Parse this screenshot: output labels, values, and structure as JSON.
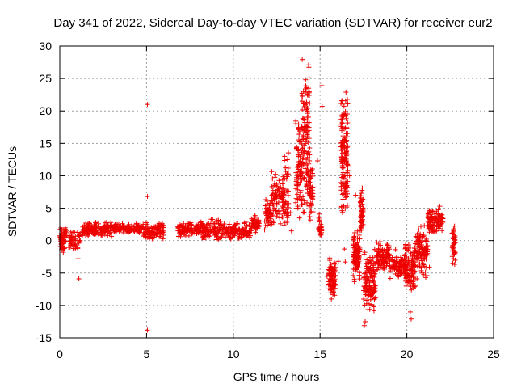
{
  "chart_data": {
    "type": "scatter",
    "title": "Day 341 of 2022, Sidereal Day-to-day VTEC variation (SDTVAR) for receiver eur2",
    "xlabel": "GPS time / hours",
    "ylabel": "SDTVAR / TECUs",
    "xlim": [
      0,
      25
    ],
    "ylim": [
      -15,
      30
    ],
    "xticks": [
      0,
      5,
      10,
      15,
      20,
      25
    ],
    "yticks": [
      -15,
      -10,
      -5,
      0,
      5,
      10,
      15,
      20,
      25,
      30
    ],
    "xtick_labels": [
      "0",
      "5",
      "10",
      "15",
      "20",
      "25"
    ],
    "ytick_labels": [
      "-15",
      "-10",
      "-5",
      "0",
      "5",
      "10",
      "15",
      "20",
      "25",
      "30"
    ],
    "grid": true,
    "marker": "+",
    "color": "#ee0000",
    "series": [
      {
        "name": "SDTVAR",
        "segments": [
          {
            "x0": 0.0,
            "x1": 0.4,
            "lo": -2.0,
            "hi": 2.5,
            "n": 60
          },
          {
            "x0": 0.5,
            "x1": 1.2,
            "lo": -1.5,
            "hi": 2.0,
            "n": 50
          },
          {
            "x0": 1.3,
            "x1": 3.0,
            "lo": 0.5,
            "hi": 3.0,
            "n": 150
          },
          {
            "x0": 3.0,
            "x1": 4.8,
            "lo": 1.0,
            "hi": 2.8,
            "n": 150
          },
          {
            "x0": 4.8,
            "x1": 6.0,
            "lo": 0.0,
            "hi": 2.8,
            "n": 110
          },
          {
            "x0": 6.8,
            "x1": 8.0,
            "lo": 0.5,
            "hi": 3.0,
            "n": 100
          },
          {
            "x0": 8.0,
            "x1": 9.5,
            "lo": 0.0,
            "hi": 3.5,
            "n": 130
          },
          {
            "x0": 9.5,
            "x1": 11.0,
            "lo": 0.0,
            "hi": 3.0,
            "n": 130
          },
          {
            "x0": 11.0,
            "x1": 11.5,
            "lo": 1.0,
            "hi": 4.0,
            "n": 50
          },
          {
            "x0": 11.8,
            "x1": 12.2,
            "lo": 1.0,
            "hi": 6.5,
            "n": 50
          },
          {
            "x0": 12.2,
            "x1": 12.9,
            "lo": 2.0,
            "hi": 11.0,
            "n": 90
          },
          {
            "x0": 12.9,
            "x1": 13.2,
            "lo": 1.0,
            "hi": 14.0,
            "n": 45
          },
          {
            "x0": 13.6,
            "x1": 13.95,
            "lo": 3.0,
            "hi": 19.0,
            "n": 80
          },
          {
            "x0": 13.95,
            "x1": 14.4,
            "lo": 2.0,
            "hi": 29.5,
            "n": 140
          },
          {
            "x0": 14.4,
            "x1": 14.6,
            "lo": 3.0,
            "hi": 12.0,
            "n": 40
          },
          {
            "x0": 14.9,
            "x1": 15.1,
            "lo": 0.0,
            "hi": 4.0,
            "n": 25
          },
          {
            "x0": 15.5,
            "x1": 15.9,
            "lo": -9.0,
            "hi": -2.0,
            "n": 90
          },
          {
            "x0": 16.2,
            "x1": 16.6,
            "lo": 2.0,
            "hi": 24.0,
            "n": 160
          },
          {
            "x0": 16.9,
            "x1": 17.3,
            "lo": -7.0,
            "hi": 2.0,
            "n": 100
          },
          {
            "x0": 17.3,
            "x1": 17.5,
            "lo": 1.0,
            "hi": 9.0,
            "n": 50
          },
          {
            "x0": 17.5,
            "x1": 18.2,
            "lo": -11.0,
            "hi": -1.0,
            "n": 130
          },
          {
            "x0": 18.2,
            "x1": 19.0,
            "lo": -5.0,
            "hi": 0.0,
            "n": 100
          },
          {
            "x0": 19.0,
            "x1": 19.9,
            "lo": -6.0,
            "hi": -2.0,
            "n": 100
          },
          {
            "x0": 19.9,
            "x1": 20.5,
            "lo": -8.5,
            "hi": 0.0,
            "n": 110
          },
          {
            "x0": 20.5,
            "x1": 21.2,
            "lo": -6.0,
            "hi": 2.5,
            "n": 110
          },
          {
            "x0": 21.2,
            "x1": 22.1,
            "lo": 1.0,
            "hi": 5.0,
            "n": 110
          },
          {
            "x0": 22.6,
            "x1": 22.8,
            "lo": -4.0,
            "hi": 3.5,
            "n": 40
          }
        ],
        "points": [
          [
            0.2,
            -1.8
          ],
          [
            1.05,
            -2.8
          ],
          [
            1.1,
            -5.9
          ],
          [
            5.05,
            21.0
          ],
          [
            5.05,
            6.8
          ],
          [
            5.05,
            -13.8
          ],
          [
            13.3,
            4.3
          ],
          [
            13.35,
            1.5
          ],
          [
            14.85,
            12.3
          ],
          [
            14.95,
            4.1
          ],
          [
            15.1,
            23.9
          ],
          [
            15.12,
            20.7
          ],
          [
            15.4,
            -5.5
          ],
          [
            15.65,
            -9.0
          ],
          [
            16.05,
            -3.2
          ],
          [
            16.4,
            -1.3
          ],
          [
            16.45,
            -3.3
          ],
          [
            16.7,
            10.0
          ],
          [
            17.05,
            7.0
          ],
          [
            17.55,
            -13.1
          ],
          [
            17.6,
            -12.5
          ],
          [
            18.1,
            -10.2
          ],
          [
            18.55,
            -3.4
          ],
          [
            19.35,
            -1.4
          ],
          [
            19.9,
            -5.4
          ],
          [
            20.2,
            -11.0
          ],
          [
            20.25,
            -12.1
          ],
          [
            21.3,
            -4.1
          ],
          [
            21.9,
            5.3
          ],
          [
            22.65,
            -3.5
          ]
        ]
      }
    ]
  }
}
